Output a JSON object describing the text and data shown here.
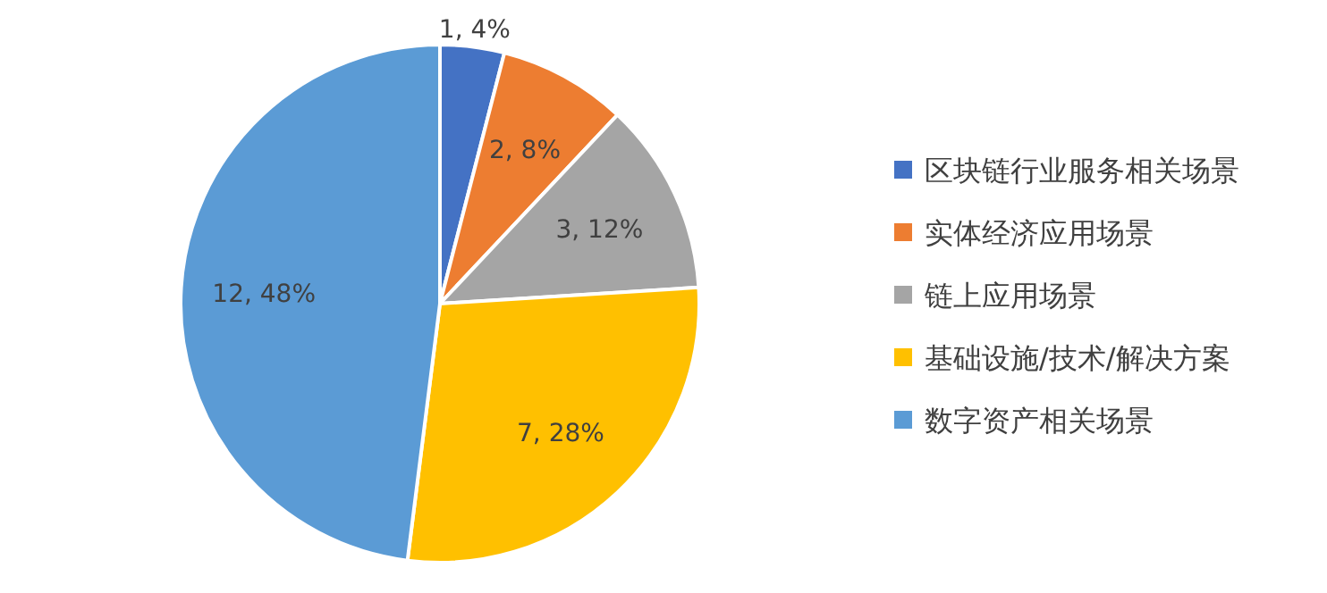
{
  "chart_data": {
    "type": "pie",
    "categories": [
      "区块链行业服务相关场景",
      "实体经济应用场景",
      "链上应用场景",
      "基础设施/技术/解决方案",
      "数字资产相关场景"
    ],
    "values": [
      1,
      2,
      3,
      7,
      12
    ],
    "colors": [
      "#4472c4",
      "#ed7d31",
      "#a5a5a5",
      "#ffc000",
      "#5b9bd5"
    ],
    "value_labels": [
      "1, 4%",
      "2, 8%",
      "3, 12%",
      "7, 28%",
      "12, 48%"
    ],
    "legend": "right"
  }
}
